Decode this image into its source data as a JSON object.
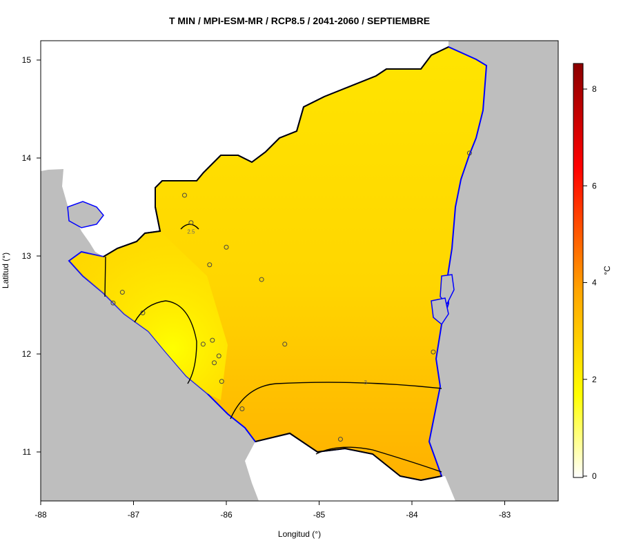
{
  "title": "T MIN / MPI-ESM-MR / RCP8.5 / 2041-2060 / SEPTIEMBRE",
  "x_axis": {
    "label": "Longitud (°)",
    "ticks": [
      {
        "value": -88,
        "label": "-88"
      },
      {
        "value": -87,
        "label": "-87"
      },
      {
        "value": -86,
        "label": "-86"
      },
      {
        "value": -85,
        "label": "-85"
      },
      {
        "value": -84,
        "label": "-84"
      },
      {
        "value": -83,
        "label": "-83"
      }
    ],
    "range": [
      -88.0,
      -82.5
    ]
  },
  "y_axis": {
    "label": "Latitud (°)",
    "ticks": [
      {
        "value": 11,
        "label": "11"
      },
      {
        "value": 12,
        "label": "12"
      },
      {
        "value": 13,
        "label": "13"
      },
      {
        "value": 14,
        "label": "14"
      },
      {
        "value": 15,
        "label": "15"
      }
    ],
    "range": [
      10.5,
      15.2
    ]
  },
  "colorbar": {
    "unit": "°C",
    "min": 0,
    "max": 8.5,
    "ticks": [
      {
        "value": 0,
        "label": "0"
      },
      {
        "value": 2,
        "label": "2"
      },
      {
        "value": 4,
        "label": "4"
      },
      {
        "value": 6,
        "label": "6"
      },
      {
        "value": 8,
        "label": "8"
      }
    ],
    "colors": [
      "#ffffff",
      "#ffff00",
      "#ffa500",
      "#ff0000",
      "#8b0000"
    ]
  },
  "contour_labels": [
    {
      "text": "2.5",
      "lon": -86.38,
      "lat": 13.25
    },
    {
      "text": "3",
      "lon": -84.5,
      "lat": 11.71
    }
  ],
  "stations": [
    {
      "lon": -86.45,
      "lat": 13.62
    },
    {
      "lon": -86.38,
      "lat": 13.34
    },
    {
      "lon": -86.0,
      "lat": 13.09
    },
    {
      "lon": -86.18,
      "lat": 12.91
    },
    {
      "lon": -85.62,
      "lat": 12.76
    },
    {
      "lon": -87.12,
      "lat": 12.63
    },
    {
      "lon": -87.22,
      "lat": 12.52
    },
    {
      "lon": -86.9,
      "lat": 12.42
    },
    {
      "lon": -86.15,
      "lat": 12.14
    },
    {
      "lon": -86.25,
      "lat": 12.1
    },
    {
      "lon": -85.37,
      "lat": 12.1
    },
    {
      "lon": -86.08,
      "lat": 11.98
    },
    {
      "lon": -86.13,
      "lat": 11.91
    },
    {
      "lon": -86.05,
      "lat": 11.72
    },
    {
      "lon": -85.83,
      "lat": 11.44
    },
    {
      "lon": -84.77,
      "lat": 11.13
    },
    {
      "lon": -83.77,
      "lat": 12.02
    },
    {
      "lon": -83.38,
      "lat": 14.05
    }
  ],
  "colors": {
    "sea_land": "#bebebe",
    "coast": "#0000ff",
    "border": "#000000",
    "field_low": "#ffff00",
    "field_high": "#ffb000"
  }
}
